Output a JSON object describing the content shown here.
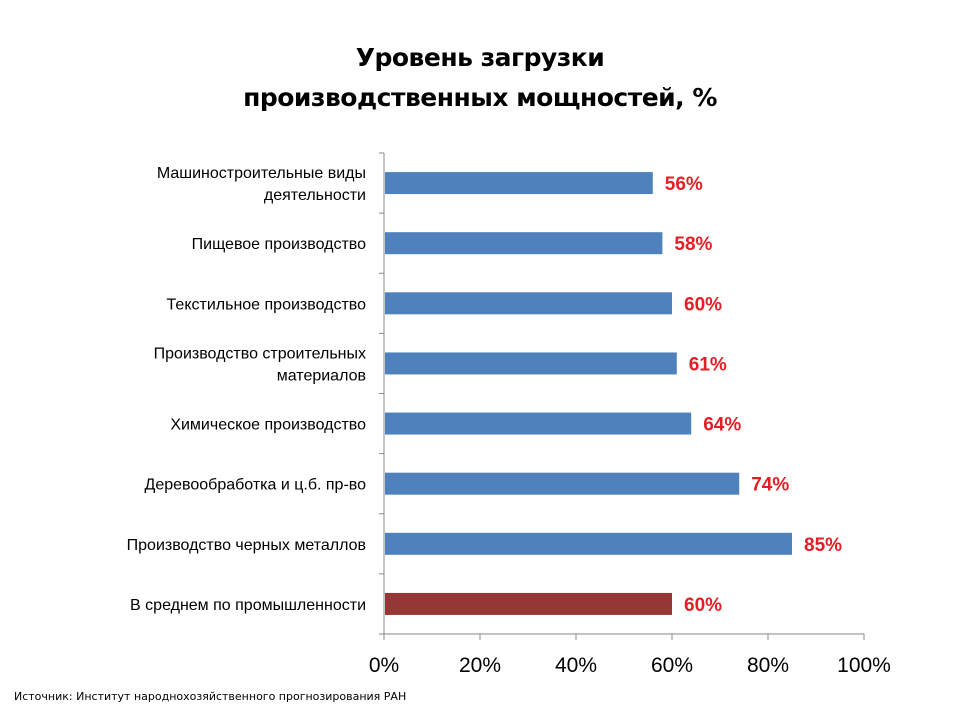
{
  "title_line1": "Уровень загрузки",
  "title_line2": "производственных мощностей, %",
  "source": "Источник: Институт народнохозяйственного прогнозирования РАН",
  "colors": {
    "bar": "#4f81bd",
    "bar_highlight": "#953735",
    "value_label": "#e31e24",
    "axis": "#888888"
  },
  "chart_data": {
    "type": "bar",
    "orientation": "horizontal",
    "categories": [
      [
        "Машиностроительные виды",
        "деятельности"
      ],
      [
        "Пищевое производство"
      ],
      [
        "Текстильное производство"
      ],
      [
        "Производство строительных",
        "материалов"
      ],
      [
        "Химическое производство"
      ],
      [
        "Деревообработка и ц.б. пр-во"
      ],
      [
        "Производство черных металлов"
      ],
      [
        "В среднем по промышленности"
      ]
    ],
    "values": [
      56,
      58,
      60,
      61,
      64,
      74,
      85,
      60
    ],
    "value_labels": [
      "56%",
      "58%",
      "60%",
      "61%",
      "64%",
      "74%",
      "85%",
      "60%"
    ],
    "highlight_index": 7,
    "xlim": [
      0,
      100
    ],
    "ticks": [
      0,
      20,
      40,
      60,
      80,
      100
    ],
    "tick_labels": [
      "0%",
      "20%",
      "40%",
      "60%",
      "80%",
      "100%"
    ],
    "grid": false,
    "legend": "none"
  }
}
